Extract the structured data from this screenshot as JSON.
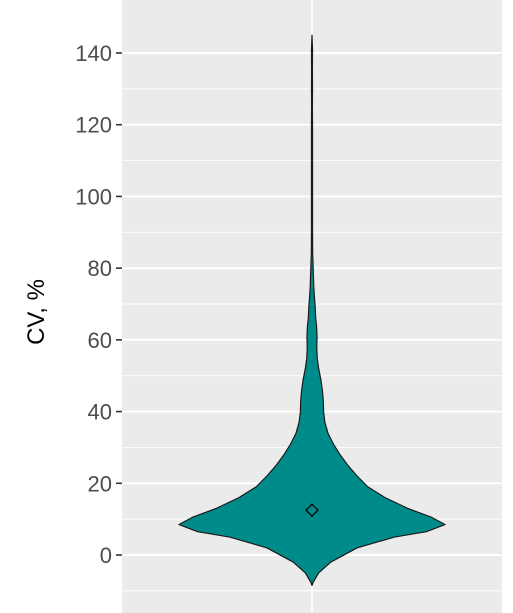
{
  "chart_data": {
    "type": "violin",
    "title": "",
    "xlabel": "",
    "ylabel": "CV, %",
    "ylim": [
      -9,
      148
    ],
    "yticks": [
      0,
      20,
      40,
      60,
      80,
      100,
      120,
      140
    ],
    "ytick_labels": [
      "0",
      "20",
      "40",
      "60",
      "80",
      "100",
      "120",
      "140"
    ],
    "grid": true,
    "mean": 12.5,
    "density_profile": [
      {
        "y": -8.5,
        "w": 0.0
      },
      {
        "y": -7.5,
        "w": 0.01
      },
      {
        "y": -5,
        "w": 0.05
      },
      {
        "y": -2,
        "w": 0.14
      },
      {
        "y": 2,
        "w": 0.34
      },
      {
        "y": 5,
        "w": 0.62
      },
      {
        "y": 6.5,
        "w": 0.86
      },
      {
        "y": 8.5,
        "w": 1.0
      },
      {
        "y": 10.5,
        "w": 0.9
      },
      {
        "y": 13,
        "w": 0.72
      },
      {
        "y": 16,
        "w": 0.55
      },
      {
        "y": 19,
        "w": 0.42
      },
      {
        "y": 22,
        "w": 0.34
      },
      {
        "y": 25,
        "w": 0.27
      },
      {
        "y": 28,
        "w": 0.21
      },
      {
        "y": 31,
        "w": 0.16
      },
      {
        "y": 34,
        "w": 0.12
      },
      {
        "y": 37,
        "w": 0.097
      },
      {
        "y": 40,
        "w": 0.087
      },
      {
        "y": 43,
        "w": 0.085
      },
      {
        "y": 46,
        "w": 0.078
      },
      {
        "y": 49,
        "w": 0.066
      },
      {
        "y": 52,
        "w": 0.05
      },
      {
        "y": 55,
        "w": 0.039
      },
      {
        "y": 58,
        "w": 0.036
      },
      {
        "y": 61,
        "w": 0.038
      },
      {
        "y": 63.5,
        "w": 0.035
      },
      {
        "y": 66,
        "w": 0.028
      },
      {
        "y": 69,
        "w": 0.024
      },
      {
        "y": 72,
        "w": 0.018
      },
      {
        "y": 75,
        "w": 0.013
      },
      {
        "y": 78,
        "w": 0.011
      },
      {
        "y": 80,
        "w": 0.009
      },
      {
        "y": 84,
        "w": 0.005
      },
      {
        "y": 90,
        "w": 0.004
      },
      {
        "y": 100,
        "w": 0.004
      },
      {
        "y": 110,
        "w": 0.004
      },
      {
        "y": 120,
        "w": 0.004
      },
      {
        "y": 125,
        "w": 0.003
      },
      {
        "y": 130,
        "w": 0.004
      },
      {
        "y": 135,
        "w": 0.003
      },
      {
        "y": 141,
        "w": 0.004
      },
      {
        "y": 145,
        "w": 0.0
      }
    ],
    "colors": {
      "fill": "#008b8b",
      "outline": "#1a1a1a",
      "panel": "#ebebeb",
      "grid": "#ffffff",
      "tick_text": "#4d4d4d"
    }
  }
}
